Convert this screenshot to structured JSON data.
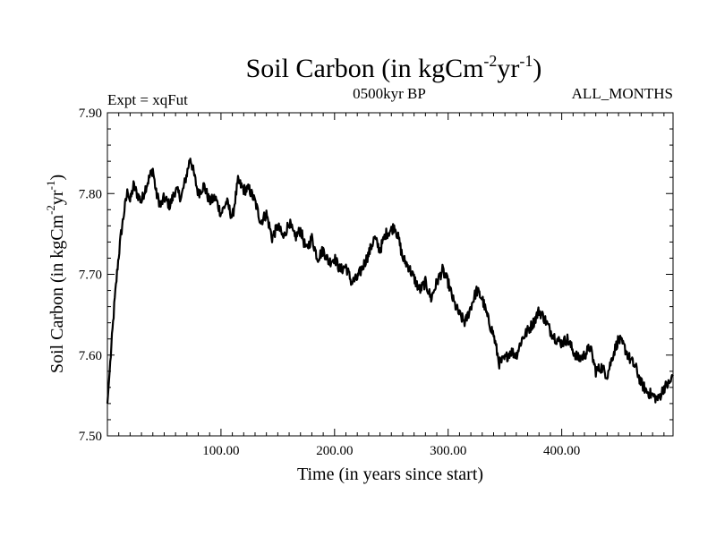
{
  "chart_data": {
    "type": "line",
    "title": {
      "main": "Soil Carbon (in kgCm",
      "exp1": "-2",
      "mid": "yr",
      "exp2": "-1",
      "close": ")"
    },
    "left_label": "Expt = xqFut",
    "center_label": "0500kyr BP",
    "right_label": "ALL_MONTHS",
    "xlabel": "Time (in years since start)",
    "ylabel": {
      "main": "Soil Carbon (in kgCm",
      "exp1": "-2",
      "mid": "yr",
      "exp2": "-1",
      "close": ")"
    },
    "xlim": [
      0,
      498
    ],
    "ylim": [
      7.5,
      7.9
    ],
    "x_ticks": [
      {
        "value": 100,
        "label": "100.00"
      },
      {
        "value": 200,
        "label": "200.00"
      },
      {
        "value": 300,
        "label": "300.00"
      },
      {
        "value": 400,
        "label": "400.00"
      }
    ],
    "y_ticks": [
      {
        "value": 7.5,
        "label": "7.50"
      },
      {
        "value": 7.6,
        "label": "7.60"
      },
      {
        "value": 7.7,
        "label": "7.70"
      },
      {
        "value": 7.8,
        "label": "7.80"
      },
      {
        "value": 7.9,
        "label": "7.90"
      }
    ],
    "series": [
      {
        "name": "Soil Carbon",
        "color": "#000000",
        "noise_amplitude": 0.007,
        "points": [
          [
            0,
            7.54
          ],
          [
            3,
            7.6
          ],
          [
            6,
            7.66
          ],
          [
            9,
            7.71
          ],
          [
            12,
            7.75
          ],
          [
            15,
            7.78
          ],
          [
            18,
            7.805
          ],
          [
            20,
            7.79
          ],
          [
            23,
            7.81
          ],
          [
            26,
            7.8
          ],
          [
            30,
            7.79
          ],
          [
            33,
            7.805
          ],
          [
            37,
            7.82
          ],
          [
            40,
            7.83
          ],
          [
            43,
            7.8
          ],
          [
            47,
            7.785
          ],
          [
            50,
            7.795
          ],
          [
            55,
            7.785
          ],
          [
            60,
            7.805
          ],
          [
            65,
            7.795
          ],
          [
            70,
            7.825
          ],
          [
            73,
            7.845
          ],
          [
            76,
            7.825
          ],
          [
            80,
            7.8
          ],
          [
            85,
            7.81
          ],
          [
            90,
            7.79
          ],
          [
            95,
            7.795
          ],
          [
            100,
            7.775
          ],
          [
            105,
            7.79
          ],
          [
            110,
            7.77
          ],
          [
            115,
            7.815
          ],
          [
            120,
            7.805
          ],
          [
            125,
            7.805
          ],
          [
            130,
            7.79
          ],
          [
            135,
            7.765
          ],
          [
            140,
            7.775
          ],
          [
            145,
            7.745
          ],
          [
            150,
            7.76
          ],
          [
            155,
            7.745
          ],
          [
            160,
            7.765
          ],
          [
            165,
            7.745
          ],
          [
            170,
            7.755
          ],
          [
            175,
            7.73
          ],
          [
            180,
            7.745
          ],
          [
            185,
            7.72
          ],
          [
            190,
            7.73
          ],
          [
            195,
            7.715
          ],
          [
            200,
            7.72
          ],
          [
            205,
            7.705
          ],
          [
            210,
            7.71
          ],
          [
            215,
            7.69
          ],
          [
            220,
            7.695
          ],
          [
            225,
            7.71
          ],
          [
            230,
            7.725
          ],
          [
            235,
            7.745
          ],
          [
            240,
            7.73
          ],
          [
            245,
            7.75
          ],
          [
            250,
            7.755
          ],
          [
            253,
            7.76
          ],
          [
            257,
            7.74
          ],
          [
            260,
            7.72
          ],
          [
            265,
            7.71
          ],
          [
            270,
            7.695
          ],
          [
            275,
            7.68
          ],
          [
            280,
            7.69
          ],
          [
            285,
            7.67
          ],
          [
            290,
            7.69
          ],
          [
            295,
            7.705
          ],
          [
            300,
            7.69
          ],
          [
            305,
            7.665
          ],
          [
            310,
            7.65
          ],
          [
            315,
            7.64
          ],
          [
            320,
            7.66
          ],
          [
            325,
            7.68
          ],
          [
            330,
            7.67
          ],
          [
            335,
            7.645
          ],
          [
            340,
            7.625
          ],
          [
            345,
            7.59
          ],
          [
            350,
            7.595
          ],
          [
            355,
            7.605
          ],
          [
            360,
            7.6
          ],
          [
            365,
            7.62
          ],
          [
            370,
            7.63
          ],
          [
            375,
            7.64
          ],
          [
            380,
            7.655
          ],
          [
            385,
            7.645
          ],
          [
            390,
            7.63
          ],
          [
            395,
            7.62
          ],
          [
            400,
            7.615
          ],
          [
            405,
            7.62
          ],
          [
            410,
            7.605
          ],
          [
            415,
            7.595
          ],
          [
            420,
            7.6
          ],
          [
            425,
            7.61
          ],
          [
            430,
            7.58
          ],
          [
            435,
            7.585
          ],
          [
            440,
            7.575
          ],
          [
            445,
            7.6
          ],
          [
            450,
            7.62
          ],
          [
            455,
            7.61
          ],
          [
            460,
            7.595
          ],
          [
            465,
            7.585
          ],
          [
            470,
            7.565
          ],
          [
            475,
            7.555
          ],
          [
            480,
            7.55
          ],
          [
            485,
            7.545
          ],
          [
            490,
            7.56
          ],
          [
            495,
            7.565
          ],
          [
            498,
            7.575
          ]
        ]
      }
    ]
  }
}
